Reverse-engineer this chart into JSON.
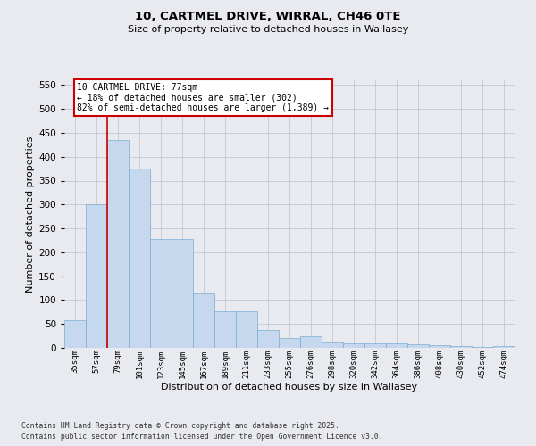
{
  "title": "10, CARTMEL DRIVE, WIRRAL, CH46 0TE",
  "subtitle": "Size of property relative to detached houses in Wallasey",
  "xlabel": "Distribution of detached houses by size in Wallasey",
  "ylabel": "Number of detached properties",
  "footnote1": "Contains HM Land Registry data © Crown copyright and database right 2025.",
  "footnote2": "Contains public sector information licensed under the Open Government Licence v3.0.",
  "categories": [
    "35sqm",
    "57sqm",
    "79sqm",
    "101sqm",
    "123sqm",
    "145sqm",
    "167sqm",
    "189sqm",
    "211sqm",
    "233sqm",
    "255sqm",
    "276sqm",
    "298sqm",
    "320sqm",
    "342sqm",
    "364sqm",
    "386sqm",
    "408sqm",
    "430sqm",
    "452sqm",
    "474sqm"
  ],
  "values": [
    57,
    300,
    435,
    375,
    227,
    227,
    113,
    77,
    77,
    38,
    20,
    25,
    14,
    10,
    9,
    10,
    7,
    5,
    3,
    2,
    3
  ],
  "bar_color": "#c5d8ed",
  "bar_edge_color": "#7aadd4",
  "grid_color": "#c8ccd8",
  "bg_color": "#e8eaf0",
  "property_line_color": "#cc0000",
  "annotation_box_color": "#cc0000",
  "annotation_text": "10 CARTMEL DRIVE: 77sqm\n← 18% of detached houses are smaller (302)\n82% of semi-detached houses are larger (1,389) →",
  "ylim": [
    0,
    560
  ],
  "yticks": [
    0,
    50,
    100,
    150,
    200,
    250,
    300,
    350,
    400,
    450,
    500,
    550
  ]
}
